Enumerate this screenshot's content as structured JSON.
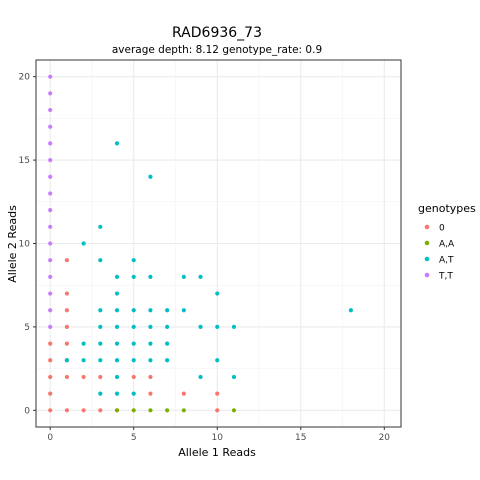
{
  "chart_data": {
    "type": "scatter",
    "title": "RAD6936_73",
    "subtitle": "average depth:  8.12  genotype_rate:  0.9",
    "xlabel": "Allele 1 Reads",
    "ylabel": "Allele 2 Reads",
    "xlim": [
      -0.85,
      21
    ],
    "ylim": [
      -1,
      21
    ],
    "x_ticks": [
      0,
      5,
      10,
      15,
      20
    ],
    "y_ticks": [
      0,
      5,
      10,
      15,
      20
    ],
    "grid": true,
    "legend": {
      "title": "genotypes",
      "placement": "right",
      "entries": [
        "0",
        "A,A",
        "A,T",
        "T,T"
      ]
    },
    "series": [
      {
        "name": "0",
        "color": "#F8766D",
        "points": [
          [
            0,
            0
          ],
          [
            1,
            0
          ],
          [
            2,
            0
          ],
          [
            3,
            0
          ],
          [
            4,
            0
          ],
          [
            10,
            0
          ],
          [
            0,
            1
          ],
          [
            10,
            1
          ],
          [
            0,
            2
          ],
          [
            1,
            2
          ],
          [
            2,
            2
          ],
          [
            3,
            2
          ],
          [
            5,
            2
          ],
          [
            6,
            2
          ],
          [
            0,
            3
          ],
          [
            1,
            3
          ],
          [
            0,
            4
          ],
          [
            1,
            4
          ],
          [
            1,
            5
          ],
          [
            1,
            6
          ],
          [
            1,
            7
          ],
          [
            1,
            9
          ],
          [
            6,
            1
          ],
          [
            8,
            1
          ]
        ]
      },
      {
        "name": "A,A",
        "color": "#7CAE00",
        "points": [
          [
            4,
            0
          ],
          [
            5,
            0
          ],
          [
            6,
            0
          ],
          [
            7,
            0
          ],
          [
            8,
            0
          ],
          [
            11,
            0
          ]
        ]
      },
      {
        "name": "A,T",
        "color": "#00BFC4",
        "points": [
          [
            4,
            16
          ],
          [
            6,
            14
          ],
          [
            3,
            11
          ],
          [
            2,
            10
          ],
          [
            3,
            9
          ],
          [
            5,
            9
          ],
          [
            4,
            8
          ],
          [
            5,
            8
          ],
          [
            6,
            8
          ],
          [
            8,
            8
          ],
          [
            9,
            8
          ],
          [
            4,
            7
          ],
          [
            10,
            7
          ],
          [
            3,
            6
          ],
          [
            4,
            6
          ],
          [
            5,
            6
          ],
          [
            6,
            6
          ],
          [
            7,
            6
          ],
          [
            8,
            6
          ],
          [
            18,
            6
          ],
          [
            3,
            5
          ],
          [
            4,
            5
          ],
          [
            5,
            5
          ],
          [
            6,
            5
          ],
          [
            7,
            5
          ],
          [
            9,
            5
          ],
          [
            10,
            5
          ],
          [
            11,
            5
          ],
          [
            2,
            4
          ],
          [
            3,
            4
          ],
          [
            4,
            4
          ],
          [
            5,
            4
          ],
          [
            6,
            4
          ],
          [
            7,
            4
          ],
          [
            1,
            3
          ],
          [
            2,
            3
          ],
          [
            3,
            3
          ],
          [
            4,
            3
          ],
          [
            5,
            3
          ],
          [
            6,
            3
          ],
          [
            7,
            3
          ],
          [
            10,
            3
          ],
          [
            4,
            2
          ],
          [
            9,
            2
          ],
          [
            11,
            2
          ],
          [
            3,
            1
          ],
          [
            4,
            1
          ],
          [
            5,
            1
          ]
        ]
      },
      {
        "name": "T,T",
        "color": "#C77CFF",
        "points": [
          [
            0,
            5
          ],
          [
            0,
            6
          ],
          [
            0,
            7
          ],
          [
            0,
            8
          ],
          [
            0,
            9
          ],
          [
            0,
            10
          ],
          [
            0,
            11
          ],
          [
            0,
            12
          ],
          [
            0,
            13
          ],
          [
            0,
            14
          ],
          [
            0,
            15
          ],
          [
            0,
            16
          ],
          [
            0,
            17
          ],
          [
            0,
            18
          ],
          [
            0,
            19
          ],
          [
            0,
            20
          ]
        ]
      }
    ]
  }
}
